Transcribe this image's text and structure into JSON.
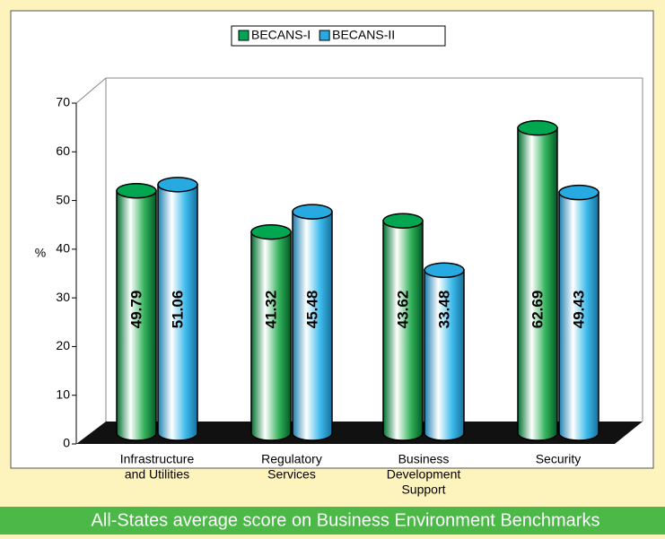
{
  "chart_data": {
    "type": "bar",
    "title": "All-States average score on Business Environment Benchmarks",
    "y_label": "%",
    "categories": [
      [
        "Infrastructure",
        "and Utilities"
      ],
      [
        "Regulatory",
        "Services"
      ],
      [
        "Business",
        "Development",
        "Support"
      ],
      [
        "Security"
      ]
    ],
    "series": [
      {
        "name": "BECANS-I",
        "color": "#00a650",
        "values": [
          49.79,
          41.32,
          43.62,
          62.69
        ]
      },
      {
        "name": "BECANS-II",
        "color": "#27aae1",
        "values": [
          51.06,
          45.48,
          33.48,
          49.43
        ]
      }
    ],
    "ylim": [
      0,
      70
    ],
    "yticks": [
      0,
      10,
      20,
      30,
      40,
      50,
      60,
      70
    ],
    "legend": "top"
  }
}
